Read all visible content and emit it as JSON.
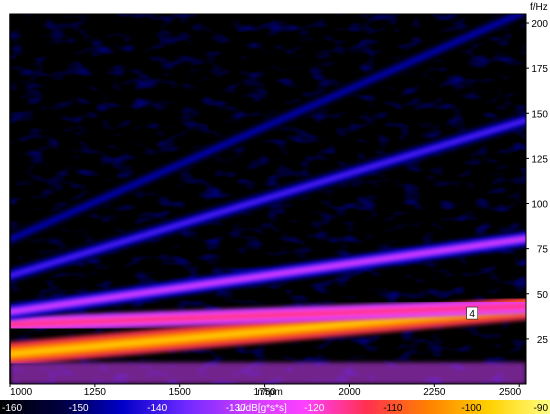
{
  "chart_data": {
    "type": "heatmap",
    "y_unit_label": "f/Hz",
    "xlabel": "n/rpm",
    "x_ticks": [
      1000,
      1250,
      1500,
      1750,
      2000,
      2250,
      2500
    ],
    "xlim": [
      1000,
      2520
    ],
    "y_ticks": [
      25,
      50,
      75,
      100,
      125,
      150,
      175,
      200
    ],
    "ylim": [
      0,
      205
    ],
    "colorbar": {
      "label": "L/dB[g*s*s]",
      "ticks": [
        -160,
        -150,
        -140,
        -130,
        -120,
        -110,
        -100,
        -90
      ],
      "range": [
        -160,
        -90
      ],
      "stops": [
        "#000000",
        "#000040",
        "#0000c8",
        "#6a28ff",
        "#c83cff",
        "#ff40ff",
        "#ff3050",
        "#ff8000",
        "#ffd000",
        "#ffff80"
      ]
    },
    "order_lines": [
      {
        "order": 1,
        "freq_at_1000": 16.7,
        "freq_at_2500": 41.7,
        "level_db": -95,
        "label": ""
      },
      {
        "order": 1.6,
        "freq_at_1000": 33,
        "freq_at_2500": 43,
        "level_db": -112,
        "label": "4"
      },
      {
        "order": 2,
        "freq_at_1000": 40,
        "freq_at_2500": 80,
        "level_db": -125,
        "label": ""
      },
      {
        "order": 3,
        "freq_at_1000": 60,
        "freq_at_2500": 145,
        "level_db": -138,
        "label": ""
      },
      {
        "order": 4,
        "freq_at_1000": 80,
        "freq_at_2500": 205,
        "level_db": -143,
        "label": ""
      }
    ],
    "background_level_db": -158,
    "grid": false
  }
}
